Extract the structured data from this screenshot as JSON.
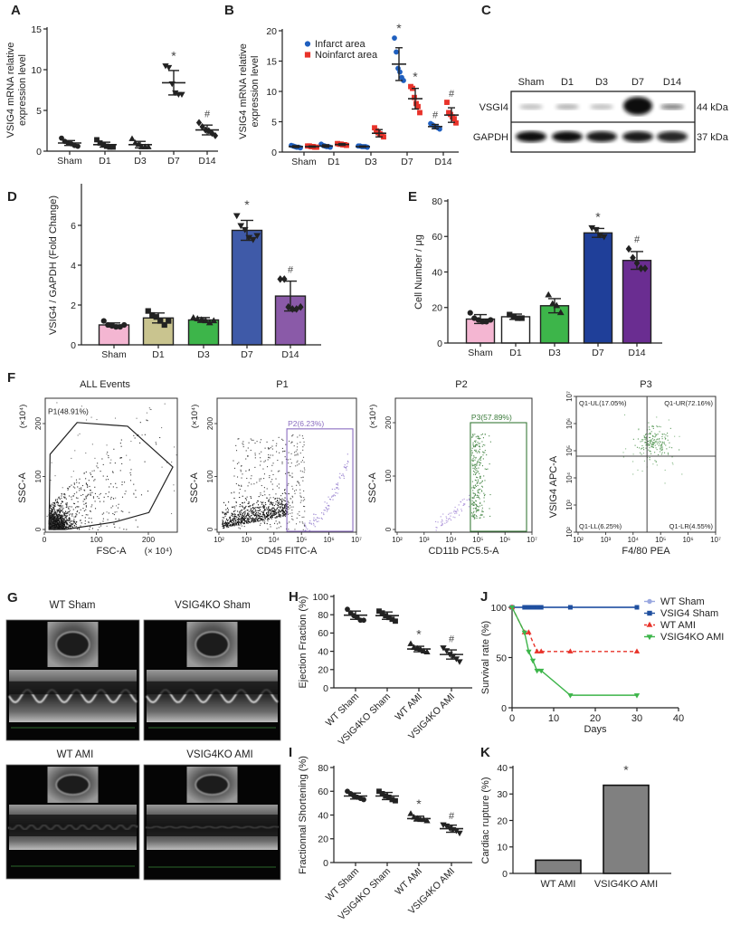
{
  "panel_labels": [
    "A",
    "B",
    "C",
    "D",
    "E",
    "F",
    "G",
    "H",
    "I",
    "J",
    "K"
  ],
  "blot": {
    "panel": "C",
    "lanes": [
      "Sham",
      "D1",
      "D3",
      "D7",
      "D14"
    ],
    "rows": [
      {
        "label": "VSGI4",
        "size": "44 kDa",
        "intensity": [
          0.25,
          0.3,
          0.25,
          1.0,
          0.55
        ]
      },
      {
        "label": "GAPDH",
        "size": "37 kDa",
        "intensity": [
          1.0,
          1.0,
          0.95,
          0.95,
          0.9
        ]
      }
    ]
  },
  "echo": {
    "panel": "G",
    "images": [
      {
        "label": "WT Sham"
      },
      {
        "label": "VSIG4KO Sham"
      },
      {
        "label": "WT AMI"
      },
      {
        "label": "VSIG4KO AMI"
      }
    ]
  },
  "chart_data": [
    {
      "panel": "A",
      "type": "scatter",
      "ylabel": [
        "VSIG4 mRNA relative",
        "expression level"
      ],
      "ylim": [
        0,
        15
      ],
      "yticks": [
        0,
        5,
        10,
        15
      ],
      "categories": [
        "Sham",
        "D1",
        "D3",
        "D7",
        "D14"
      ],
      "groups": [
        {
          "marker": "circle",
          "color": "#222222",
          "points": [
            1.6,
            1.2,
            1.0,
            0.9,
            0.7,
            0.6
          ],
          "mean": 1.0,
          "sd": 0.3,
          "annotation": ""
        },
        {
          "marker": "square",
          "color": "#222222",
          "points": [
            1.4,
            1.0,
            0.8,
            0.6,
            0.5,
            0.5
          ],
          "mean": 0.8,
          "sd": 0.3,
          "annotation": ""
        },
        {
          "marker": "triangle",
          "color": "#222222",
          "points": [
            1.5,
            1.0,
            0.8,
            0.5,
            0.5,
            0.5
          ],
          "mean": 0.8,
          "sd": 0.4,
          "annotation": ""
        },
        {
          "marker": "triangle-down",
          "color": "#222222",
          "points": [
            10.5,
            10.3,
            8.3,
            7.2,
            7.0,
            7.0
          ],
          "mean": 8.4,
          "sd": 1.5,
          "annotation": "*"
        },
        {
          "marker": "diamond",
          "color": "#222222",
          "points": [
            3.5,
            3.0,
            2.6,
            2.5,
            2.2,
            1.9
          ],
          "mean": 2.6,
          "sd": 0.6,
          "annotation": "#"
        }
      ]
    },
    {
      "panel": "B",
      "type": "scatter",
      "ylabel": [
        "VSIG4 mRNA relative",
        "expression level"
      ],
      "ylim": [
        0,
        20
      ],
      "yticks": [
        0,
        5,
        10,
        15,
        20
      ],
      "categories": [
        "Sham",
        "D1",
        "D3",
        "D7",
        "D14"
      ],
      "legend_position": "top-left",
      "series": [
        {
          "name": "Infarct area",
          "color": "#1f5fbf",
          "marker": "circle",
          "groups": [
            {
              "points": [
                1.1,
                1.0,
                0.9,
                0.8,
                0.8,
                0.7
              ],
              "mean": 0.9,
              "sd": 0.15,
              "annotation": ""
            },
            {
              "points": [
                1.3,
                1.1,
                1.0,
                0.9,
                0.9,
                0.8
              ],
              "mean": 1.0,
              "sd": 0.2,
              "annotation": ""
            },
            {
              "points": [
                1.0,
                1.0,
                0.9,
                0.9,
                0.9,
                0.8
              ],
              "mean": 0.9,
              "sd": 0.1,
              "annotation": ""
            },
            {
              "points": [
                18.8,
                16.5,
                13.8,
                13.2,
                12.3,
                11.8
              ],
              "mean": 14.5,
              "sd": 2.7,
              "annotation": "*"
            },
            {
              "points": [
                4.7,
                4.5,
                4.3,
                4.2,
                4.0,
                3.8
              ],
              "mean": 4.2,
              "sd": 0.35,
              "annotation": "#"
            }
          ]
        },
        {
          "name": "Noinfarct area",
          "color": "#e8332a",
          "marker": "square",
          "groups": [
            {
              "points": [
                1.0,
                1.0,
                0.9,
                0.9,
                0.8,
                0.8
              ],
              "mean": 0.9,
              "sd": 0.1,
              "annotation": ""
            },
            {
              "points": [
                1.4,
                1.3,
                1.3,
                1.2,
                1.2,
                1.1
              ],
              "mean": 1.25,
              "sd": 0.15,
              "annotation": ""
            },
            {
              "points": [
                4.0,
                3.5,
                3.2,
                3.0,
                2.8,
                2.5
              ],
              "mean": 3.1,
              "sd": 0.6,
              "annotation": ""
            },
            {
              "points": [
                10.8,
                10.5,
                9.0,
                8.0,
                7.5,
                6.5
              ],
              "mean": 8.8,
              "sd": 1.7,
              "annotation": "*"
            },
            {
              "points": [
                8.2,
                6.5,
                6.2,
                5.8,
                5.5,
                4.8
              ],
              "mean": 6.1,
              "sd": 1.2,
              "annotation": "#"
            }
          ]
        }
      ]
    },
    {
      "panel": "D",
      "type": "bar",
      "ylabel": "VSIG4 / GAPDH (Fold Change)",
      "ylim": [
        0,
        8
      ],
      "yticks": [
        0,
        2,
        4,
        6
      ],
      "categories": [
        "Sham",
        "D1",
        "D3",
        "D7",
        "D14"
      ],
      "groups": [
        {
          "color": "#f4b6d2",
          "marker": "circle",
          "points": [
            1.2,
            1.0,
            0.95,
            0.9,
            0.9,
            1.0
          ],
          "mean": 1.0,
          "sd": 0.1,
          "annotation": ""
        },
        {
          "color": "#c9c48f",
          "marker": "square",
          "points": [
            1.7,
            1.5,
            1.4,
            1.2,
            1.0,
            1.2
          ],
          "mean": 1.35,
          "sd": 0.25,
          "annotation": ""
        },
        {
          "color": "#3db54a",
          "marker": "triangle",
          "points": [
            1.35,
            1.3,
            1.25,
            1.2,
            1.1,
            1.2
          ],
          "mean": 1.25,
          "sd": 0.12,
          "annotation": ""
        },
        {
          "color": "#3f5aa8",
          "marker": "triangle-down",
          "points": [
            6.5,
            6.0,
            5.8,
            5.4,
            5.3,
            5.5
          ],
          "mean": 5.75,
          "sd": 0.5,
          "annotation": "*"
        },
        {
          "color": "#8a5aa8",
          "marker": "diamond",
          "points": [
            3.3,
            3.3,
            1.9,
            1.8,
            1.8,
            1.9
          ],
          "mean": 2.45,
          "sd": 0.75,
          "annotation": "#"
        }
      ]
    },
    {
      "panel": "E",
      "type": "bar",
      "ylabel": "Cell Number / μg",
      "ylim": [
        0,
        80
      ],
      "yticks": [
        0,
        20,
        40,
        60,
        80
      ],
      "categories": [
        "Sham",
        "D1",
        "D3",
        "D7",
        "D14"
      ],
      "groups": [
        {
          "color": "#f4b6d2",
          "marker": "circle",
          "points": [
            17,
            14,
            13,
            12,
            12,
            13
          ],
          "mean": 13.5,
          "sd": 2.5,
          "annotation": ""
        },
        {
          "color": "#ffffff",
          "marker": "square",
          "points": [
            16,
            15,
            14,
            14
          ],
          "mean": 14.8,
          "sd": 1.5,
          "annotation": ""
        },
        {
          "color": "#3db54a",
          "marker": "triangle",
          "points": [
            27,
            22,
            21,
            17
          ],
          "mean": 21,
          "sd": 4,
          "annotation": ""
        },
        {
          "color": "#1f3f99",
          "marker": "triangle-down",
          "points": [
            65,
            64,
            61,
            60
          ],
          "mean": 62,
          "sd": 2.5,
          "annotation": "*"
        },
        {
          "color": "#6a2d91",
          "marker": "diamond",
          "points": [
            53,
            48,
            45,
            42,
            42
          ],
          "mean": 46.5,
          "sd": 5,
          "annotation": "#"
        }
      ]
    },
    {
      "panel": "F",
      "type": "scatter",
      "title": "ALL Events",
      "xlabel": "FSC-A",
      "xunit": "(× 10⁴)",
      "ylabel": "SSC-A",
      "yunit": "(×10⁴)",
      "xscale": "linear",
      "yscale": "linear",
      "xticks": [
        0,
        100,
        200
      ],
      "yticks": [
        0,
        100,
        200
      ],
      "gate": {
        "label": "P1(48.91%)",
        "color": "#222222",
        "polygon": [
          [
            11,
            142
          ],
          [
            63,
            202
          ],
          [
            160,
            195
          ],
          [
            247,
            118
          ],
          [
            201,
            32
          ],
          [
            135,
            14
          ],
          [
            40,
            0
          ],
          [
            9,
            0
          ]
        ]
      }
    },
    {
      "panel": "F",
      "type": "scatter",
      "title": "P1",
      "xlabel": "CD45 FITC-A",
      "ylabel": "SSC-A",
      "yunit": "(×10⁴)",
      "xscale": "log",
      "yscale": "linear",
      "xticks_log10": [
        2,
        3,
        4,
        5,
        6,
        7
      ],
      "xtick_labels": [
        "10²",
        "10³",
        "10⁴",
        "10⁵",
        "10⁶",
        "10⁷"
      ],
      "yticks": [
        0,
        100,
        200
      ],
      "gate": {
        "label": "P2(6.23%)",
        "color": "#8a6cc0",
        "rect": {
          "x": [
            29500,
            7400000
          ],
          "y": [
            -5,
            190
          ]
        }
      }
    },
    {
      "panel": "F",
      "type": "scatter",
      "title": "P2",
      "xlabel": "CD11b PC5.5-A",
      "ylabel": "SSC-A",
      "yunit": "(×10⁴)",
      "xscale": "log",
      "yscale": "linear",
      "xticks_log10": [
        2,
        3,
        4,
        5,
        6,
        7
      ],
      "xtick_labels": [
        "10²",
        "10³",
        "10⁴",
        "10⁵",
        "10⁶",
        "10⁷"
      ],
      "yticks": [
        0,
        100,
        200
      ],
      "gate": {
        "label": "P3(57.89%)",
        "color": "#3a7a3a",
        "rect": {
          "x": [
            52000,
            6300000
          ],
          "y": [
            -5,
            200
          ]
        }
      }
    },
    {
      "panel": "F",
      "type": "scatter",
      "title": "P3",
      "xlabel": "F4/80 PEA",
      "ylabel": "VSIG4 APC-A",
      "xscale": "log",
      "yscale": "log",
      "xticks_log10": [
        2,
        3,
        4,
        5,
        6,
        7
      ],
      "xtick_labels": [
        "10²",
        "10³",
        "10⁴",
        "10⁵",
        "10⁶",
        "10⁷"
      ],
      "yticks_log10": [
        2,
        3,
        4,
        5,
        6,
        7
      ],
      "ytick_labels": [
        "10²",
        "10³",
        "10⁴",
        "10⁵",
        "10⁶",
        "10⁷"
      ],
      "quadrant": {
        "x": 32000,
        "y": 63000,
        "labels": {
          "UL": "Q1-UL(17.05%)",
          "UR": "Q1-UR(72.16%)",
          "LL": "Q1-LL(6.25%)",
          "LR": "Q1-LR(4.55%)"
        }
      }
    },
    {
      "panel": "H",
      "type": "scatter",
      "ylabel": "Ejection Fraction (%)",
      "ylim": [
        0,
        100
      ],
      "yticks": [
        0,
        20,
        40,
        60,
        80,
        100
      ],
      "categories": [
        "WT Sham",
        "VSIG4KO Sham",
        "WT AMI",
        "VSIG4KO AMI"
      ],
      "groups": [
        {
          "marker": "circle",
          "color": "#222222",
          "points": [
            86,
            82,
            79,
            77,
            74,
            74
          ],
          "mean": 79.5,
          "sd": 4.5,
          "annotation": ""
        },
        {
          "marker": "square",
          "color": "#222222",
          "points": [
            84,
            82,
            79,
            77,
            75,
            73
          ],
          "mean": 79,
          "sd": 4,
          "annotation": ""
        },
        {
          "marker": "triangle",
          "color": "#222222",
          "points": [
            48,
            44,
            43,
            42,
            40,
            39
          ],
          "mean": 42.5,
          "sd": 3,
          "annotation": "*"
        },
        {
          "marker": "triangle-down",
          "color": "#222222",
          "points": [
            44,
            41,
            37,
            35,
            32,
            29
          ],
          "mean": 36.5,
          "sd": 5,
          "annotation": "#"
        }
      ]
    },
    {
      "panel": "I",
      "type": "scatter",
      "ylabel": "Fractionnal Shortening (%)",
      "ylim": [
        0,
        80
      ],
      "yticks": [
        0,
        20,
        40,
        60,
        80
      ],
      "categories": [
        "WT Sham",
        "VSIG4KO Sham",
        "WT AMI",
        "VSIG4KO AMI"
      ],
      "groups": [
        {
          "marker": "circle",
          "color": "#222222",
          "points": [
            60,
            58,
            56,
            55,
            54,
            53
          ],
          "mean": 56,
          "sd": 2.5,
          "annotation": ""
        },
        {
          "marker": "square",
          "color": "#222222",
          "points": [
            60,
            58,
            56,
            55,
            53,
            52
          ],
          "mean": 56,
          "sd": 3,
          "annotation": ""
        },
        {
          "marker": "triangle",
          "color": "#222222",
          "points": [
            41,
            38,
            37,
            36,
            36,
            35
          ],
          "mean": 37,
          "sd": 2,
          "annotation": "*"
        },
        {
          "marker": "triangle-down",
          "color": "#222222",
          "points": [
            32,
            31,
            29,
            28,
            27,
            25
          ],
          "mean": 28.5,
          "sd": 3,
          "annotation": "#"
        }
      ]
    },
    {
      "panel": "J",
      "type": "line",
      "xlabel": "Days",
      "ylabel": "Survival rate (%)",
      "xlim": [
        0,
        40
      ],
      "ylim": [
        0,
        100
      ],
      "xticks": [
        0,
        10,
        20,
        30,
        40
      ],
      "yticks": [
        0,
        50,
        100
      ],
      "legend_position": "right",
      "series": [
        {
          "name": "WT Sham",
          "color": "#9aa8e0",
          "marker": "circle",
          "dashed": false,
          "points": [
            [
              0,
              100
            ],
            [
              3,
              100
            ],
            [
              4,
              100
            ],
            [
              5,
              100
            ],
            [
              6,
              100
            ],
            [
              7,
              100
            ],
            [
              14,
              100
            ],
            [
              30,
              100
            ]
          ]
        },
        {
          "name": "VSIG4 Sham",
          "color": "#1f4f9f",
          "marker": "square",
          "dashed": false,
          "points": [
            [
              0,
              100
            ],
            [
              3,
              100
            ],
            [
              4,
              100
            ],
            [
              5,
              100
            ],
            [
              6,
              100
            ],
            [
              7,
              100
            ],
            [
              14,
              100
            ],
            [
              30,
              100
            ]
          ]
        },
        {
          "name": "WT AMI",
          "color": "#e8332a",
          "marker": "triangle",
          "dashed": true,
          "points": [
            [
              0,
              100
            ],
            [
              3,
              75
            ],
            [
              4,
              75
            ],
            [
              6,
              56
            ],
            [
              7,
              56
            ],
            [
              14,
              56
            ],
            [
              30,
              56
            ]
          ]
        },
        {
          "name": "VSIG4KO AMI",
          "color": "#3db54a",
          "marker": "triangle-down",
          "dashed": false,
          "points": [
            [
              0,
              100
            ],
            [
              3,
              75
            ],
            [
              4,
              56
            ],
            [
              5,
              47
            ],
            [
              6,
              37
            ],
            [
              7,
              37
            ],
            [
              14,
              12.5
            ],
            [
              30,
              12.5
            ]
          ]
        }
      ]
    },
    {
      "panel": "K",
      "type": "bar",
      "ylabel": "Cardiac rupture (%)",
      "ylim": [
        0,
        40
      ],
      "yticks": [
        0,
        10,
        20,
        30,
        40
      ],
      "categories": [
        "WT AMI",
        "VSIG4KO AMI"
      ],
      "values": [
        5,
        33.3
      ],
      "color": "#808080",
      "annotations": [
        "",
        "*"
      ]
    }
  ]
}
